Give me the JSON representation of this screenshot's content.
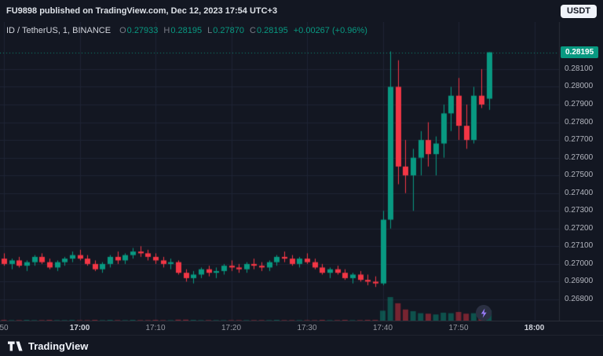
{
  "topbar": {
    "attribution": "FU9898 published on TradingView.com, Dec 12, 2023 17:54 UTC+3",
    "quote_currency": "USDT"
  },
  "legend": {
    "symbol_text": "ID / TetherUS, 1, BINANCE",
    "o_label": "O",
    "o_value": "0.27933",
    "h_label": "H",
    "h_value": "0.28195",
    "l_label": "L",
    "l_value": "0.27870",
    "c_label": "C",
    "c_value": "0.28195",
    "change": "+0.00267 (+0.96%)"
  },
  "price_axis": {
    "last_price": "0.28195"
  },
  "footer": {
    "brand": "TradingView"
  },
  "colors": {
    "background": "#131722",
    "grid": "#1e2434",
    "axis_line": "#2a2e39",
    "up": "#089981",
    "down": "#f23645"
  },
  "chart_data": {
    "type": "candlestick",
    "title": "ID / TetherUS, 1 minute, BINANCE",
    "interval": "1m",
    "ylim": [
      0.2668,
      0.28366
    ],
    "y_ticks": [
      "0.28100",
      "0.28000",
      "0.27900",
      "0.27800",
      "0.27700",
      "0.27600",
      "0.27500",
      "0.27400",
      "0.27300",
      "0.27200",
      "0.27100",
      "0.27000",
      "0.26900",
      "0.26800"
    ],
    "x_ticks": [
      {
        "m": 0,
        "label": "50"
      },
      {
        "m": 10,
        "label": "17:00"
      },
      {
        "m": 20,
        "label": "17:10"
      },
      {
        "m": 30,
        "label": "17:20"
      },
      {
        "m": 40,
        "label": "17:30"
      },
      {
        "m": 50,
        "label": "17:40"
      },
      {
        "m": 60,
        "label": "17:50"
      },
      {
        "m": 70,
        "label": "18:00"
      }
    ],
    "candles": [
      {
        "t": "16:50",
        "o": 0.2703,
        "h": 0.2706,
        "l": 0.2699,
        "c": 0.27,
        "v": 3
      },
      {
        "t": "16:51",
        "o": 0.27,
        "h": 0.2703,
        "l": 0.2697,
        "c": 0.2702,
        "v": 2
      },
      {
        "t": "16:52",
        "o": 0.2702,
        "h": 0.2704,
        "l": 0.2698,
        "c": 0.2699,
        "v": 2
      },
      {
        "t": "16:53",
        "o": 0.2699,
        "h": 0.2702,
        "l": 0.2696,
        "c": 0.2701,
        "v": 3
      },
      {
        "t": "16:54",
        "o": 0.2701,
        "h": 0.2705,
        "l": 0.2699,
        "c": 0.2704,
        "v": 2
      },
      {
        "t": "16:55",
        "o": 0.2704,
        "h": 0.2706,
        "l": 0.27,
        "c": 0.2701,
        "v": 2
      },
      {
        "t": "16:56",
        "o": 0.2701,
        "h": 0.2703,
        "l": 0.2697,
        "c": 0.2698,
        "v": 3
      },
      {
        "t": "16:57",
        "o": 0.2698,
        "h": 0.2702,
        "l": 0.2696,
        "c": 0.2701,
        "v": 2
      },
      {
        "t": "16:58",
        "o": 0.2701,
        "h": 0.2704,
        "l": 0.2699,
        "c": 0.2703,
        "v": 2
      },
      {
        "t": "16:59",
        "o": 0.2703,
        "h": 0.2707,
        "l": 0.2701,
        "c": 0.2705,
        "v": 3
      },
      {
        "t": "17:00",
        "o": 0.2705,
        "h": 0.2708,
        "l": 0.2702,
        "c": 0.2703,
        "v": 2
      },
      {
        "t": "17:01",
        "o": 0.2703,
        "h": 0.2705,
        "l": 0.2699,
        "c": 0.27,
        "v": 2
      },
      {
        "t": "17:02",
        "o": 0.27,
        "h": 0.2702,
        "l": 0.2696,
        "c": 0.2697,
        "v": 3
      },
      {
        "t": "17:03",
        "o": 0.2697,
        "h": 0.2701,
        "l": 0.2695,
        "c": 0.27,
        "v": 2
      },
      {
        "t": "17:04",
        "o": 0.27,
        "h": 0.2705,
        "l": 0.2698,
        "c": 0.2704,
        "v": 3
      },
      {
        "t": "17:05",
        "o": 0.2704,
        "h": 0.2707,
        "l": 0.27,
        "c": 0.2702,
        "v": 2
      },
      {
        "t": "17:06",
        "o": 0.2702,
        "h": 0.2706,
        "l": 0.27,
        "c": 0.2705,
        "v": 2
      },
      {
        "t": "17:07",
        "o": 0.2705,
        "h": 0.2709,
        "l": 0.2703,
        "c": 0.2707,
        "v": 3
      },
      {
        "t": "17:08",
        "o": 0.2707,
        "h": 0.271,
        "l": 0.2704,
        "c": 0.2706,
        "v": 2
      },
      {
        "t": "17:09",
        "o": 0.2706,
        "h": 0.2708,
        "l": 0.2702,
        "c": 0.2704,
        "v": 2
      },
      {
        "t": "17:10",
        "o": 0.2704,
        "h": 0.2706,
        "l": 0.27,
        "c": 0.2702,
        "v": 3
      },
      {
        "t": "17:11",
        "o": 0.2702,
        "h": 0.2704,
        "l": 0.2698,
        "c": 0.27,
        "v": 2
      },
      {
        "t": "17:12",
        "o": 0.27,
        "h": 0.2703,
        "l": 0.2697,
        "c": 0.2701,
        "v": 2
      },
      {
        "t": "17:13",
        "o": 0.2701,
        "h": 0.2702,
        "l": 0.2694,
        "c": 0.2695,
        "v": 4
      },
      {
        "t": "17:14",
        "o": 0.2695,
        "h": 0.2697,
        "l": 0.269,
        "c": 0.2692,
        "v": 4
      },
      {
        "t": "17:15",
        "o": 0.2692,
        "h": 0.2696,
        "l": 0.2689,
        "c": 0.2694,
        "v": 3
      },
      {
        "t": "17:16",
        "o": 0.2694,
        "h": 0.2698,
        "l": 0.2692,
        "c": 0.2697,
        "v": 2
      },
      {
        "t": "17:17",
        "o": 0.2697,
        "h": 0.2699,
        "l": 0.2693,
        "c": 0.2695,
        "v": 2
      },
      {
        "t": "17:18",
        "o": 0.2695,
        "h": 0.2698,
        "l": 0.2692,
        "c": 0.2696,
        "v": 2
      },
      {
        "t": "17:19",
        "o": 0.2696,
        "h": 0.27,
        "l": 0.2694,
        "c": 0.2699,
        "v": 2
      },
      {
        "t": "17:20",
        "o": 0.2699,
        "h": 0.2702,
        "l": 0.2696,
        "c": 0.2698,
        "v": 2
      },
      {
        "t": "17:21",
        "o": 0.2698,
        "h": 0.27,
        "l": 0.2695,
        "c": 0.2697,
        "v": 2
      },
      {
        "t": "17:22",
        "o": 0.2697,
        "h": 0.2701,
        "l": 0.2695,
        "c": 0.27,
        "v": 2
      },
      {
        "t": "17:23",
        "o": 0.27,
        "h": 0.2703,
        "l": 0.2697,
        "c": 0.2699,
        "v": 2
      },
      {
        "t": "17:24",
        "o": 0.2699,
        "h": 0.2701,
        "l": 0.2696,
        "c": 0.2698,
        "v": 2
      },
      {
        "t": "17:25",
        "o": 0.2698,
        "h": 0.2702,
        "l": 0.2696,
        "c": 0.2701,
        "v": 2
      },
      {
        "t": "17:26",
        "o": 0.2701,
        "h": 0.2705,
        "l": 0.2699,
        "c": 0.2704,
        "v": 3
      },
      {
        "t": "17:27",
        "o": 0.2704,
        "h": 0.2707,
        "l": 0.2701,
        "c": 0.2703,
        "v": 2
      },
      {
        "t": "17:28",
        "o": 0.2703,
        "h": 0.2705,
        "l": 0.2699,
        "c": 0.27,
        "v": 2
      },
      {
        "t": "17:29",
        "o": 0.27,
        "h": 0.2704,
        "l": 0.2698,
        "c": 0.2703,
        "v": 2
      },
      {
        "t": "17:30",
        "o": 0.2703,
        "h": 0.2706,
        "l": 0.27,
        "c": 0.2701,
        "v": 2
      },
      {
        "t": "17:31",
        "o": 0.2701,
        "h": 0.2703,
        "l": 0.2697,
        "c": 0.2698,
        "v": 2
      },
      {
        "t": "17:32",
        "o": 0.2698,
        "h": 0.27,
        "l": 0.2694,
        "c": 0.2695,
        "v": 3
      },
      {
        "t": "17:33",
        "o": 0.2695,
        "h": 0.2698,
        "l": 0.2692,
        "c": 0.2697,
        "v": 2
      },
      {
        "t": "17:34",
        "o": 0.2697,
        "h": 0.2699,
        "l": 0.2694,
        "c": 0.2695,
        "v": 2
      },
      {
        "t": "17:35",
        "o": 0.2695,
        "h": 0.2697,
        "l": 0.2691,
        "c": 0.2692,
        "v": 3
      },
      {
        "t": "17:36",
        "o": 0.2692,
        "h": 0.2695,
        "l": 0.2689,
        "c": 0.2694,
        "v": 2
      },
      {
        "t": "17:37",
        "o": 0.2694,
        "h": 0.2696,
        "l": 0.269,
        "c": 0.2691,
        "v": 2
      },
      {
        "t": "17:38",
        "o": 0.2691,
        "h": 0.2694,
        "l": 0.2688,
        "c": 0.269,
        "v": 3
      },
      {
        "t": "17:39",
        "o": 0.269,
        "h": 0.2693,
        "l": 0.2687,
        "c": 0.2689,
        "v": 3
      },
      {
        "t": "17:40",
        "o": 0.2689,
        "h": 0.273,
        "l": 0.2688,
        "c": 0.2725,
        "v": 40
      },
      {
        "t": "17:41",
        "o": 0.2725,
        "h": 0.282,
        "l": 0.272,
        "c": 0.28,
        "v": 95
      },
      {
        "t": "17:42",
        "o": 0.28,
        "h": 0.2815,
        "l": 0.2745,
        "c": 0.2755,
        "v": 70
      },
      {
        "t": "17:43",
        "o": 0.2755,
        "h": 0.277,
        "l": 0.274,
        "c": 0.275,
        "v": 45
      },
      {
        "t": "17:44",
        "o": 0.275,
        "h": 0.2765,
        "l": 0.273,
        "c": 0.276,
        "v": 38
      },
      {
        "t": "17:45",
        "o": 0.276,
        "h": 0.2775,
        "l": 0.275,
        "c": 0.277,
        "v": 30
      },
      {
        "t": "17:46",
        "o": 0.277,
        "h": 0.278,
        "l": 0.2755,
        "c": 0.2762,
        "v": 28
      },
      {
        "t": "17:47",
        "o": 0.2762,
        "h": 0.2772,
        "l": 0.275,
        "c": 0.2768,
        "v": 25
      },
      {
        "t": "17:48",
        "o": 0.2768,
        "h": 0.279,
        "l": 0.276,
        "c": 0.2785,
        "v": 32
      },
      {
        "t": "17:49",
        "o": 0.2785,
        "h": 0.28,
        "l": 0.2775,
        "c": 0.2795,
        "v": 30
      },
      {
        "t": "17:50",
        "o": 0.2795,
        "h": 0.2805,
        "l": 0.277,
        "c": 0.2778,
        "v": 35
      },
      {
        "t": "17:51",
        "o": 0.2778,
        "h": 0.279,
        "l": 0.2765,
        "c": 0.277,
        "v": 28
      },
      {
        "t": "17:52",
        "o": 0.277,
        "h": 0.28,
        "l": 0.2768,
        "c": 0.2795,
        "v": 30
      },
      {
        "t": "17:53",
        "o": 0.2795,
        "h": 0.281,
        "l": 0.2788,
        "c": 0.279,
        "v": 26
      },
      {
        "t": "17:54",
        "o": 0.27933,
        "h": 0.28195,
        "l": 0.2787,
        "c": 0.28195,
        "v": 42
      }
    ]
  }
}
